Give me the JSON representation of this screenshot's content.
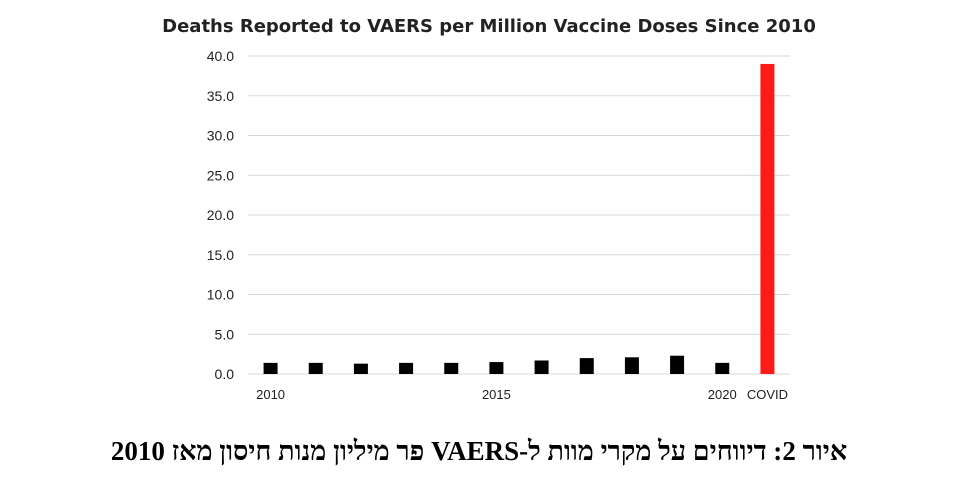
{
  "chart_data": {
    "type": "bar",
    "title": "Deaths Reported to VAERS per Million Vaccine Doses Since 2010",
    "categories": [
      "2010",
      "2011",
      "2012",
      "2013",
      "2014",
      "2015",
      "2016",
      "2017",
      "2018",
      "2019",
      "2020",
      "COVID"
    ],
    "x_tick_labels": [
      "2010",
      "",
      "",
      "",
      "",
      "2015",
      "",
      "",
      "",
      "",
      "2020",
      "COVID"
    ],
    "values": [
      1.4,
      1.4,
      1.3,
      1.4,
      1.4,
      1.5,
      1.7,
      2.0,
      2.1,
      2.3,
      1.4,
      39.0
    ],
    "ylim": [
      0,
      40
    ],
    "yticks": [
      "0.0",
      "5.0",
      "10.0",
      "15.0",
      "20.0",
      "25.0",
      "30.0",
      "35.0",
      "40.0"
    ],
    "ytick_values": [
      0,
      5,
      10,
      15,
      20,
      25,
      30,
      35,
      40
    ],
    "grid": true,
    "bar_colors": [
      "#000000",
      "#000000",
      "#000000",
      "#000000",
      "#000000",
      "#000000",
      "#000000",
      "#000000",
      "#000000",
      "#000000",
      "#000000",
      "#ff1a1a"
    ],
    "xlabel": "",
    "ylabel": ""
  },
  "caption": "איור 2: דיווחים על מקרי מוות ל-VAERS פר מיליון מנות חיסון מאז 2010"
}
